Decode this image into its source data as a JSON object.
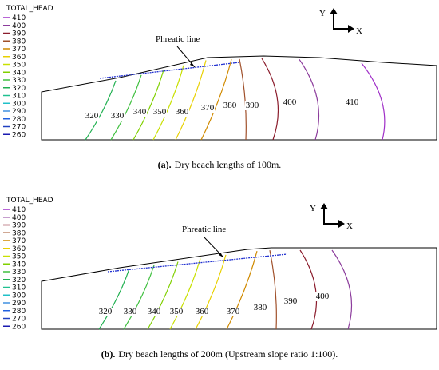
{
  "panels": [
    {
      "legend_title": "TOTAL_HEAD",
      "legend": [
        {
          "level": "410",
          "color": "#a030c8"
        },
        {
          "level": "400",
          "color": "#8c3c9c"
        },
        {
          "level": "390",
          "color": "#8b1c2c"
        },
        {
          "level": "380",
          "color": "#a0502a"
        },
        {
          "level": "370",
          "color": "#d08a00"
        },
        {
          "level": "360",
          "color": "#e8d000"
        },
        {
          "level": "350",
          "color": "#c8e000"
        },
        {
          "level": "340",
          "color": "#80d000"
        },
        {
          "level": "330",
          "color": "#40c040"
        },
        {
          "level": "320",
          "color": "#20b050"
        },
        {
          "level": "310",
          "color": "#20c090"
        },
        {
          "level": "300",
          "color": "#20c0c8"
        },
        {
          "level": "290",
          "color": "#4090e0"
        },
        {
          "level": "280",
          "color": "#2060e0"
        },
        {
          "level": "270",
          "color": "#2040c0"
        },
        {
          "level": "260",
          "color": "#1a1ab0"
        }
      ],
      "axis_y": "Y",
      "axis_x": "X",
      "phreatic_label": "Phreatic line",
      "contour_labels": [
        "320",
        "330",
        "340",
        "350",
        "360",
        "370",
        "380",
        "390",
        "400",
        "410"
      ],
      "caption_label": "(a).",
      "caption_text": "Dry beach lengths of 100m."
    },
    {
      "legend_title": "TOTAL_HEAD",
      "legend": [
        {
          "level": "410",
          "color": "#a030c8"
        },
        {
          "level": "400",
          "color": "#8c3c9c"
        },
        {
          "level": "390",
          "color": "#8b1c2c"
        },
        {
          "level": "380",
          "color": "#a0502a"
        },
        {
          "level": "370",
          "color": "#d08a00"
        },
        {
          "level": "360",
          "color": "#e8d000"
        },
        {
          "level": "350",
          "color": "#c8e000"
        },
        {
          "level": "340",
          "color": "#80d000"
        },
        {
          "level": "330",
          "color": "#40c040"
        },
        {
          "level": "320",
          "color": "#20b050"
        },
        {
          "level": "310",
          "color": "#20c090"
        },
        {
          "level": "300",
          "color": "#20c0c8"
        },
        {
          "level": "290",
          "color": "#4090e0"
        },
        {
          "level": "280",
          "color": "#2060e0"
        },
        {
          "level": "270",
          "color": "#2040c0"
        },
        {
          "level": "260",
          "color": "#1a1ab0"
        }
      ],
      "axis_y": "Y",
      "axis_x": "X",
      "phreatic_label": "Phreatic line",
      "contour_labels": [
        "320",
        "330",
        "340",
        "350",
        "360",
        "370",
        "380",
        "390",
        "400"
      ],
      "caption_label": "(b).",
      "caption_text": "Dry beach lengths of 200m (Upstream slope ratio 1:100)."
    }
  ]
}
